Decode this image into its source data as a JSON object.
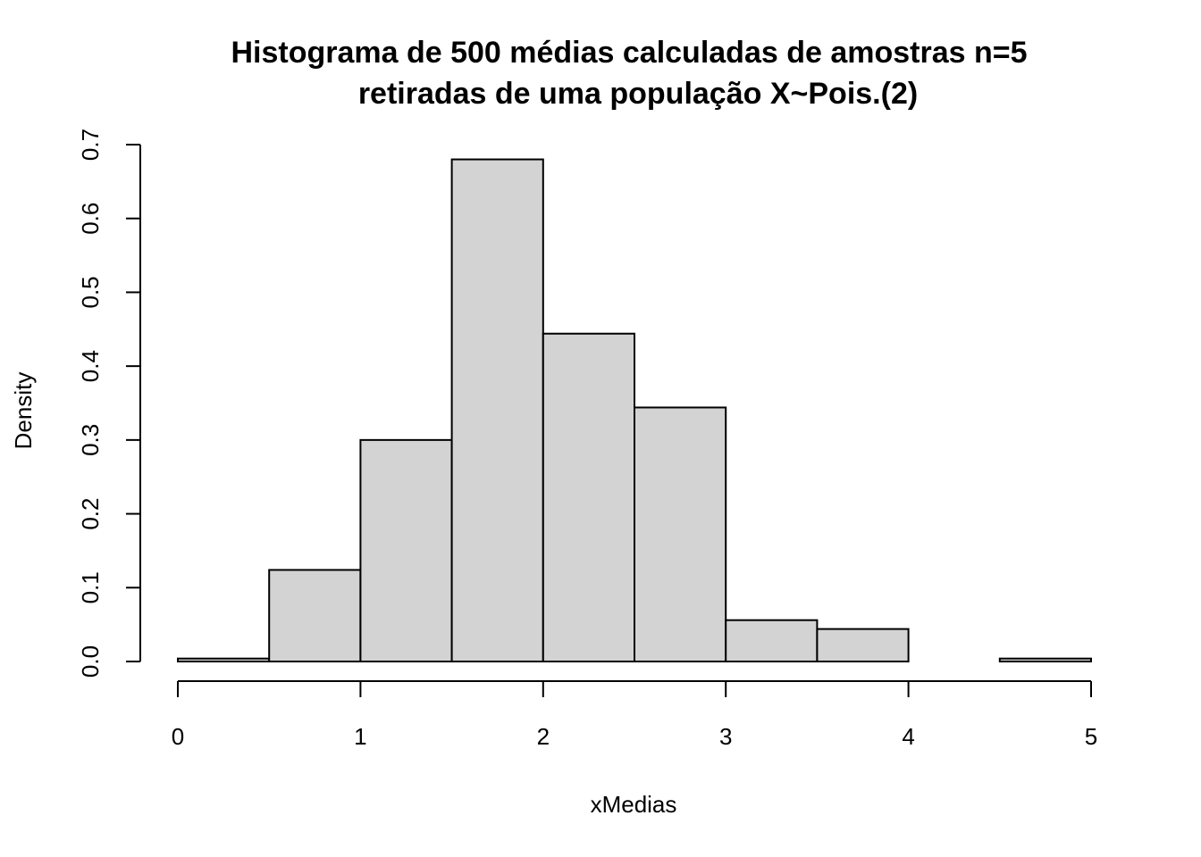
{
  "chart_data": {
    "type": "bar",
    "subtype": "histogram",
    "title_line1": "Histograma de 500 médias calculadas de amostras n=5",
    "title_line2": "retiradas de uma população X~Pois.(2)",
    "xlabel": "xMedias",
    "ylabel": "Density",
    "xlim": [
      0,
      5
    ],
    "ylim": [
      0,
      0.7
    ],
    "x_ticks": [
      "0",
      "1",
      "2",
      "3",
      "4",
      "5"
    ],
    "y_ticks": [
      "0.0",
      "0.1",
      "0.2",
      "0.3",
      "0.4",
      "0.5",
      "0.6",
      "0.7"
    ],
    "bin_edges": [
      0,
      0.5,
      1,
      1.5,
      2,
      2.5,
      3,
      3.5,
      4,
      4.5,
      5
    ],
    "density": [
      0.004,
      0.124,
      0.3,
      0.68,
      0.444,
      0.344,
      0.056,
      0.044,
      0.0,
      0.004
    ],
    "bar_fill": "#d3d3d3",
    "bar_stroke": "#000000"
  }
}
